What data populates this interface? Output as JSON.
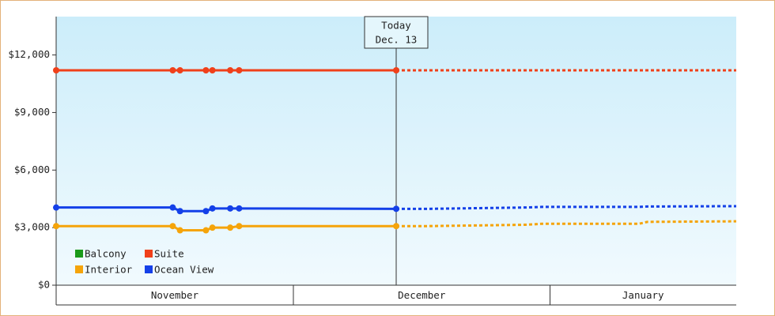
{
  "chart_data": {
    "type": "line",
    "today": {
      "lines": [
        "Today",
        "Dec. 13"
      ],
      "x": 42
    },
    "x_categories": [
      "November",
      "December",
      "January"
    ],
    "x_category_edges": [
      0,
      29.3,
      61,
      84
    ],
    "xlim": [
      0,
      84
    ],
    "x": [
      0,
      14.4,
      15.3,
      18.5,
      19.3,
      21.5,
      22.6,
      42,
      46,
      58,
      60,
      72,
      73,
      84
    ],
    "ylim": [
      0,
      14000
    ],
    "yticks": [
      {
        "value": 0,
        "label": "$0"
      },
      {
        "value": 3000,
        "label": "$3,000"
      },
      {
        "value": 6000,
        "label": "$6,000"
      },
      {
        "value": 9000,
        "label": "$9,000"
      },
      {
        "value": 12000,
        "label": "$12,000"
      }
    ],
    "series": [
      {
        "name": "Balcony",
        "color": "#1a9a1a",
        "values": [
          null,
          null,
          null,
          null,
          null,
          null,
          null,
          null,
          null,
          null,
          null,
          null,
          null,
          null
        ]
      },
      {
        "name": "Suite",
        "color": "#f0401a",
        "values": [
          11200,
          11200,
          11200,
          11200,
          11200,
          11200,
          11200,
          11200,
          11200,
          11200,
          11200,
          11200,
          11200,
          11200
        ]
      },
      {
        "name": "Interior",
        "color": "#f5a40a",
        "values": [
          3080,
          3080,
          2860,
          2860,
          3000,
          3000,
          3080,
          3080,
          3080,
          3150,
          3200,
          3200,
          3300,
          3330
        ]
      },
      {
        "name": "Ocean View",
        "color": "#1440e8",
        "values": [
          4050,
          4050,
          3860,
          3860,
          4000,
          4000,
          4000,
          3980,
          3980,
          4050,
          4080,
          4080,
          4100,
          4120
        ]
      }
    ]
  }
}
